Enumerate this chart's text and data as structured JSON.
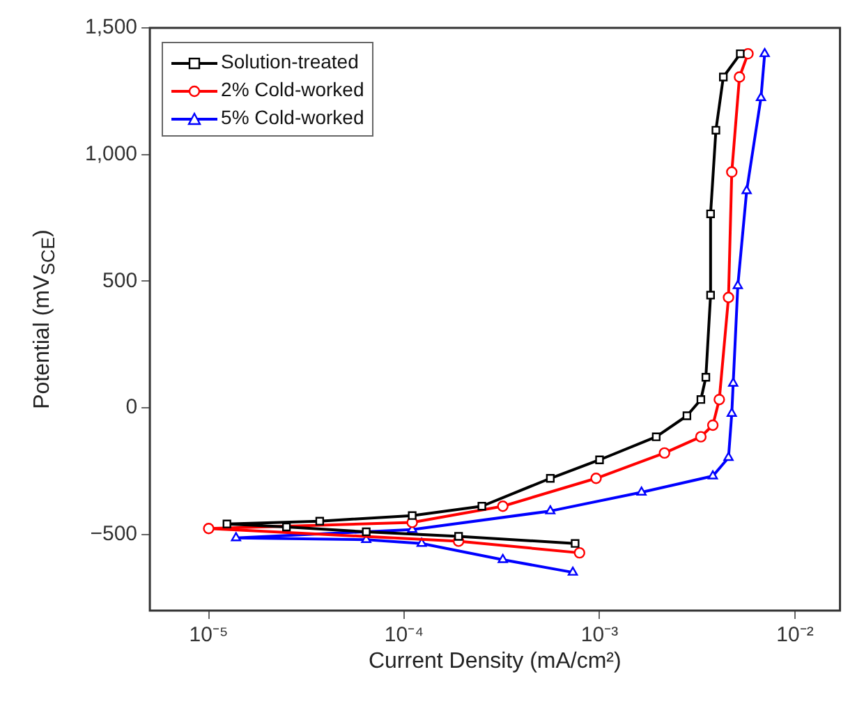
{
  "chart_data": {
    "type": "line",
    "xlabel": "Current Density (mA/cm²)",
    "ylabel": "Potential (mV$_{SCE}$)",
    "log": "x",
    "legend": "top left",
    "line_style": "solid",
    "xlim": [
      5e-06,
      0.017
    ],
    "xticks": [
      {
        "value": 1e-05,
        "label": "10⁻⁵"
      },
      {
        "value": 0.0001,
        "label": "10⁻⁴"
      },
      {
        "value": 0.001,
        "label": "10⁻³"
      },
      {
        "value": 0.01,
        "label": "10⁻²"
      }
    ],
    "ylim": [
      -800,
      1500
    ],
    "yticks": [
      {
        "value": -500,
        "label": "−500"
      },
      0,
      500,
      {
        "value": 1000,
        "label": "1,000"
      },
      {
        "value": 1500,
        "label": "1,500"
      }
    ],
    "series": [
      {
        "name": "Solution-treated",
        "color": "#000000",
        "marker": "square",
        "x": [
          0.00075,
          0.00019,
          6.4e-05,
          2.5e-05,
          1.24e-05,
          3.7e-05,
          0.00011,
          0.00025,
          0.00056,
          0.001,
          0.00195,
          0.0028,
          0.0033,
          0.0035,
          0.0037,
          0.0037,
          0.00394,
          0.0043,
          0.00525
        ],
        "values": [
          -535,
          -507,
          -489,
          -470,
          -458,
          -447,
          -425,
          -388,
          -278,
          -205,
          -114,
          -31,
          33,
          121,
          445,
          766,
          1096,
          1306,
          1398
        ]
      },
      {
        "name": "2% Cold-worked",
        "color": "#ff0000",
        "marker": "circle",
        "x": [
          0.00079,
          0.00019,
          1e-05,
          0.00011,
          0.00032,
          0.00096,
          0.00215,
          0.0033,
          0.0038,
          0.0041,
          0.00457,
          0.00475,
          0.0052,
          0.00575
        ],
        "values": [
          -572,
          -526,
          -476,
          -452,
          -388,
          -278,
          -178,
          -114,
          -68,
          33,
          436,
          931,
          1306,
          1398
        ]
      },
      {
        "name": "5% Cold-worked",
        "color": "#0000ff",
        "marker": "triangle",
        "x": [
          0.00073,
          0.00032,
          0.000123,
          6.4e-05,
          1.38e-05,
          0.00011,
          0.00056,
          0.00164,
          0.0038,
          0.00457,
          0.00475,
          0.00483,
          0.0051,
          0.00566,
          0.0067,
          0.007
        ],
        "values": [
          -649,
          -599,
          -535,
          -520,
          -513,
          -480,
          -407,
          -333,
          -269,
          -196,
          -22,
          97,
          482,
          857,
          1224,
          1398
        ]
      }
    ]
  }
}
